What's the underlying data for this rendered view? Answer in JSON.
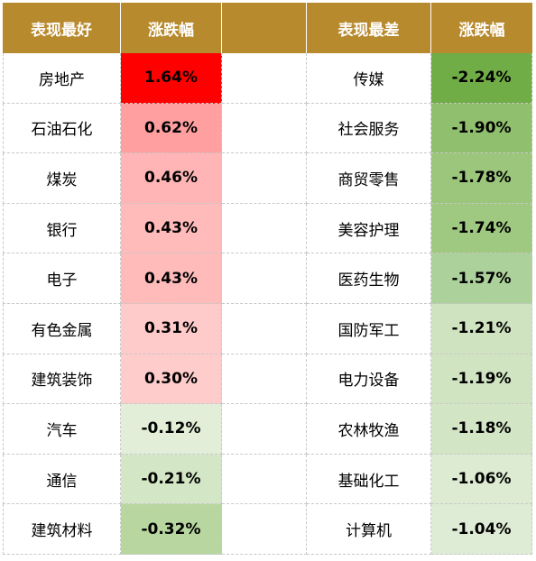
{
  "headers": {
    "best_label": "表现最好",
    "best_change": "涨跌幅",
    "worst_label": "表现最差",
    "worst_change": "涨跌幅"
  },
  "best": [
    {
      "name": "房地产",
      "value": "1.64%",
      "color": "#ff0000"
    },
    {
      "name": "石油石化",
      "value": "0.62%",
      "color": "#ff9f9f"
    },
    {
      "name": "煤炭",
      "value": "0.46%",
      "color": "#ffb5b5"
    },
    {
      "name": "银行",
      "value": "0.43%",
      "color": "#ffbaba"
    },
    {
      "name": "电子",
      "value": "0.43%",
      "color": "#ffbaba"
    },
    {
      "name": "有色金属",
      "value": "0.31%",
      "color": "#ffcaca"
    },
    {
      "name": "建筑装饰",
      "value": "0.30%",
      "color": "#ffcccc"
    },
    {
      "name": "汽车",
      "value": "-0.12%",
      "color": "#e2eed8"
    },
    {
      "name": "通信",
      "value": "-0.21%",
      "color": "#d3e6c5"
    },
    {
      "name": "建筑材料",
      "value": "-0.32%",
      "color": "#b8d7a0"
    }
  ],
  "worst": [
    {
      "name": "传媒",
      "value": "-2.24%",
      "color": "#70ad47"
    },
    {
      "name": "社会服务",
      "value": "-1.90%",
      "color": "#90c06e"
    },
    {
      "name": "商贸零售",
      "value": "-1.78%",
      "color": "#9bc67b"
    },
    {
      "name": "美容护理",
      "value": "-1.74%",
      "color": "#9fc881"
    },
    {
      "name": "医药生物",
      "value": "-1.57%",
      "color": "#add19a"
    },
    {
      "name": "国防军工",
      "value": "-1.21%",
      "color": "#cfe3c0"
    },
    {
      "name": "电力设备",
      "value": "-1.19%",
      "color": "#d0e4c2"
    },
    {
      "name": "农林牧渔",
      "value": "-1.18%",
      "color": "#d2e5c4"
    },
    {
      "name": "基础化工",
      "value": "-1.06%",
      "color": "#ddebd2"
    },
    {
      "name": "计算机",
      "value": "-1.04%",
      "color": "#dfecd5"
    }
  ]
}
